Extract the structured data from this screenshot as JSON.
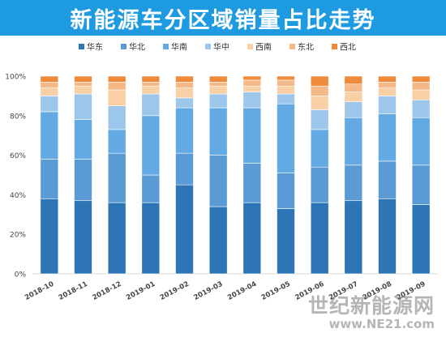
{
  "title": "新能源车分区域销量占比走势",
  "watermark": {
    "name": "世纪新能源网",
    "url": "www.NE21.com"
  },
  "colors": [
    "#2e75b6",
    "#5b9bd5",
    "#63a9e3",
    "#9dc7ea",
    "#f9cfa6",
    "#f5b987",
    "#ee8a3a"
  ],
  "chart_data": {
    "type": "bar",
    "stacked": true,
    "categories": [
      "2018-10",
      "2018-11",
      "2018-12",
      "2019-01",
      "2019-02",
      "2019-03",
      "2019-04",
      "2019-05",
      "2019-06",
      "2019-07",
      "2019-08",
      "2019-09"
    ],
    "yticks": [
      "0%",
      "20%",
      "40%",
      "60%",
      "80%",
      "100%"
    ],
    "ylim": [
      0,
      100
    ],
    "legend_position": "top",
    "grid": false,
    "series": [
      {
        "name": "华东",
        "values": [
          38,
          37,
          36,
          36,
          45,
          34,
          36,
          33,
          36,
          37,
          38,
          35
        ]
      },
      {
        "name": "华北",
        "values": [
          20,
          21,
          25,
          14,
          16,
          26,
          20,
          18,
          18,
          18,
          19,
          20
        ]
      },
      {
        "name": "华南",
        "values": [
          24,
          20,
          12,
          30,
          23,
          24,
          28,
          35,
          19,
          24,
          24,
          24
        ]
      },
      {
        "name": "华中",
        "values": [
          8,
          13,
          12,
          11,
          5,
          7,
          8,
          5,
          10,
          8,
          9,
          9
        ]
      },
      {
        "name": "西南",
        "values": [
          4,
          4,
          8,
          4,
          5,
          4,
          3,
          4,
          7,
          5,
          4,
          5
        ]
      },
      {
        "name": "东北",
        "values": [
          3,
          2,
          4,
          2,
          3,
          2,
          3,
          3,
          5,
          4,
          3,
          4
        ]
      },
      {
        "name": "西北",
        "values": [
          3,
          3,
          3,
          3,
          3,
          3,
          2,
          2,
          5,
          4,
          3,
          3
        ]
      }
    ]
  }
}
